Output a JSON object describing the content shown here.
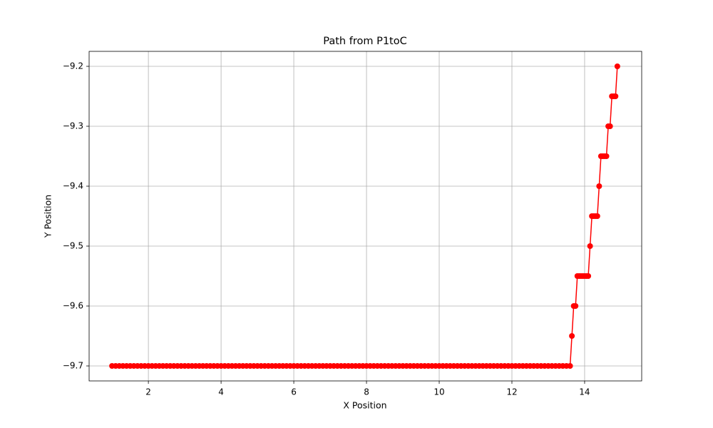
{
  "chart_data": {
    "type": "line",
    "title": "Path from P1toC",
    "x_label": "X Position",
    "y_label": "Y Position",
    "xlim": [
      0.37,
      15.57
    ],
    "ylim": [
      -9.725,
      -9.175
    ],
    "xticks": [
      2,
      4,
      6,
      8,
      10,
      12,
      14
    ],
    "yticks": [
      {
        "value": -9.7,
        "label": "−9.7"
      },
      {
        "value": -9.6,
        "label": "−9.6"
      },
      {
        "value": -9.5,
        "label": "−9.5"
      },
      {
        "value": -9.4,
        "label": "−9.4"
      },
      {
        "value": -9.3,
        "label": "−9.3"
      },
      {
        "value": -9.2,
        "label": "−9.2"
      }
    ],
    "grid": true,
    "color": "#ff0000",
    "marker": "o",
    "x": [
      1.0,
      1.1,
      1.2,
      1.3,
      1.4,
      1.5,
      1.6,
      1.7,
      1.8,
      1.9,
      2.0,
      2.1,
      2.2,
      2.3,
      2.4,
      2.5,
      2.6,
      2.7,
      2.8,
      2.9,
      3.0,
      3.1,
      3.2,
      3.3,
      3.4,
      3.5,
      3.6,
      3.7,
      3.8,
      3.9,
      4.0,
      4.1,
      4.2,
      4.3,
      4.4,
      4.5,
      4.6,
      4.7,
      4.8,
      4.9,
      5.0,
      5.1,
      5.2,
      5.3,
      5.4,
      5.5,
      5.6,
      5.7,
      5.8,
      5.9,
      6.0,
      6.1,
      6.2,
      6.3,
      6.4,
      6.5,
      6.6,
      6.7,
      6.8,
      6.9,
      7.0,
      7.1,
      7.2,
      7.3,
      7.4,
      7.5,
      7.6,
      7.7,
      7.8,
      7.9,
      8.0,
      8.1,
      8.2,
      8.3,
      8.4,
      8.5,
      8.6,
      8.7,
      8.8,
      8.9,
      9.0,
      9.1,
      9.2,
      9.3,
      9.4,
      9.5,
      9.6,
      9.7,
      9.8,
      9.9,
      10.0,
      10.1,
      10.2,
      10.3,
      10.4,
      10.5,
      10.6,
      10.7,
      10.8,
      10.9,
      11.0,
      11.1,
      11.2,
      11.3,
      11.4,
      11.5,
      11.6,
      11.7,
      11.8,
      11.9,
      12.0,
      12.1,
      12.2,
      12.3,
      12.4,
      12.5,
      12.6,
      12.7,
      12.8,
      12.9,
      13.0,
      13.1,
      13.2,
      13.3,
      13.4,
      13.5,
      13.6,
      13.65,
      13.7,
      13.75,
      13.8,
      13.85,
      13.9,
      13.95,
      14.0,
      14.05,
      14.1,
      14.15,
      14.2,
      14.25,
      14.3,
      14.35,
      14.4,
      14.45,
      14.5,
      14.55,
      14.6,
      14.65,
      14.7,
      14.75,
      14.8,
      14.85,
      14.9
    ],
    "values": [
      -9.7,
      -9.7,
      -9.7,
      -9.7,
      -9.7,
      -9.7,
      -9.7,
      -9.7,
      -9.7,
      -9.7,
      -9.7,
      -9.7,
      -9.7,
      -9.7,
      -9.7,
      -9.7,
      -9.7,
      -9.7,
      -9.7,
      -9.7,
      -9.7,
      -9.7,
      -9.7,
      -9.7,
      -9.7,
      -9.7,
      -9.7,
      -9.7,
      -9.7,
      -9.7,
      -9.7,
      -9.7,
      -9.7,
      -9.7,
      -9.7,
      -9.7,
      -9.7,
      -9.7,
      -9.7,
      -9.7,
      -9.7,
      -9.7,
      -9.7,
      -9.7,
      -9.7,
      -9.7,
      -9.7,
      -9.7,
      -9.7,
      -9.7,
      -9.7,
      -9.7,
      -9.7,
      -9.7,
      -9.7,
      -9.7,
      -9.7,
      -9.7,
      -9.7,
      -9.7,
      -9.7,
      -9.7,
      -9.7,
      -9.7,
      -9.7,
      -9.7,
      -9.7,
      -9.7,
      -9.7,
      -9.7,
      -9.7,
      -9.7,
      -9.7,
      -9.7,
      -9.7,
      -9.7,
      -9.7,
      -9.7,
      -9.7,
      -9.7,
      -9.7,
      -9.7,
      -9.7,
      -9.7,
      -9.7,
      -9.7,
      -9.7,
      -9.7,
      -9.7,
      -9.7,
      -9.7,
      -9.7,
      -9.7,
      -9.7,
      -9.7,
      -9.7,
      -9.7,
      -9.7,
      -9.7,
      -9.7,
      -9.7,
      -9.7,
      -9.7,
      -9.7,
      -9.7,
      -9.7,
      -9.7,
      -9.7,
      -9.7,
      -9.7,
      -9.7,
      -9.7,
      -9.7,
      -9.7,
      -9.7,
      -9.7,
      -9.7,
      -9.7,
      -9.7,
      -9.7,
      -9.7,
      -9.7,
      -9.7,
      -9.7,
      -9.7,
      -9.7,
      -9.7,
      -9.65,
      -9.6,
      -9.6,
      -9.55,
      -9.55,
      -9.55,
      -9.55,
      -9.55,
      -9.55,
      -9.55,
      -9.5,
      -9.45,
      -9.45,
      -9.45,
      -9.45,
      -9.4,
      -9.35,
      -9.35,
      -9.35,
      -9.35,
      -9.3,
      -9.3,
      -9.25,
      -9.25,
      -9.25,
      -9.2
    ]
  }
}
